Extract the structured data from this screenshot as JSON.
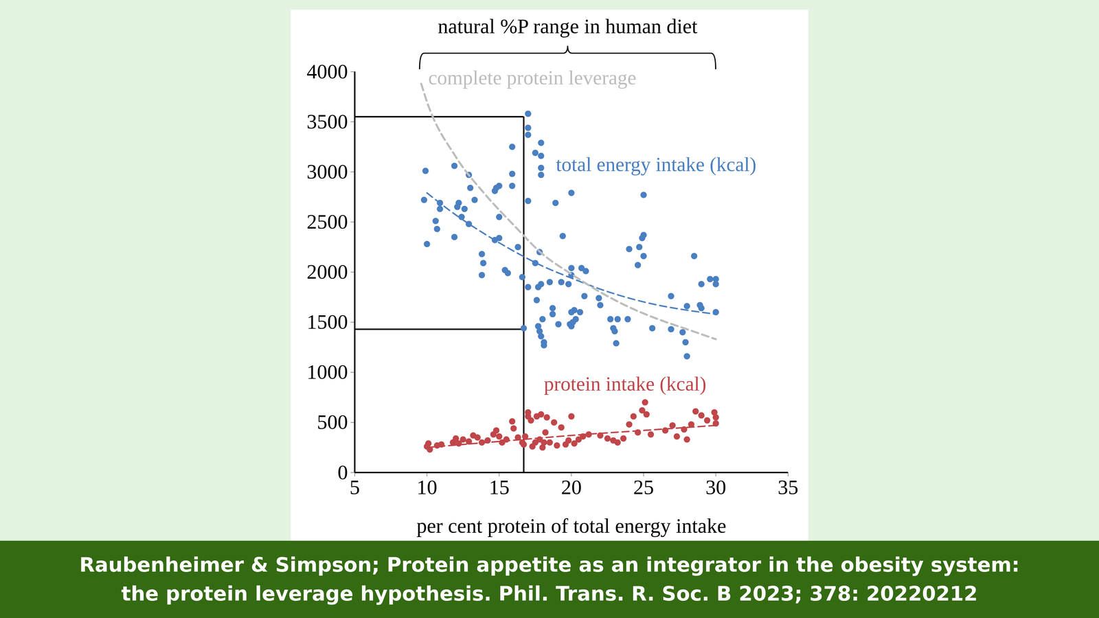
{
  "chart_data": {
    "type": "scatter",
    "x_label": "per cent protein of total energy intake",
    "xlim": [
      5,
      35
    ],
    "xticks": [
      5,
      10,
      15,
      20,
      25,
      30,
      35
    ],
    "ylim": [
      0,
      4000
    ],
    "yticks": [
      0,
      500,
      1000,
      1500,
      2000,
      2500,
      3000,
      3500,
      4000
    ],
    "bracket": {
      "label": "natural %P range in human diet",
      "range": [
        9.5,
        30
      ]
    },
    "reference_lines": {
      "x": 16.7,
      "y": [
        3550,
        1430
      ]
    },
    "caption": [
      "Raubenheimer & Simpson; Protein appetite as an integrator in the obesity system:",
      "the protein leverage hypothesis. Phil. Trans. R. Soc. B 2023; 378: 20220212"
    ],
    "series": [
      {
        "name": "total energy intake (kcal)",
        "type": "scatter",
        "marker": "circle",
        "color": "#4a7fc1",
        "x": [
          9.9,
          9.8,
          10.0,
          10.6,
          10.7,
          10.9,
          10.9,
          11.9,
          11.9,
          12.1,
          12.2,
          12.4,
          12.6,
          12.9,
          13.0,
          12.9,
          13.3,
          13.8,
          13.9,
          13.8,
          14.7,
          14.8,
          15.0,
          14.7,
          15.0,
          15.0,
          15.4,
          15.6,
          15.9,
          15.9,
          15.9,
          16.3,
          16.6,
          16.7,
          17.0,
          17.0,
          17.0,
          17.0,
          17.0,
          17.5,
          17.9,
          17.9,
          17.9,
          17.9,
          17.8,
          17.5,
          17.6,
          17.7,
          17.9,
          17.7,
          17.8,
          17.9,
          18.1,
          18.1,
          18.0,
          18.5,
          18.7,
          18.7,
          18.9,
          19.1,
          19.3,
          19.4,
          19.8,
          19.9,
          20.0,
          20.0,
          20.0,
          20.0,
          20.0,
          20.1,
          20.2,
          20.3,
          20.6,
          20.7,
          21.0,
          20.9,
          21.9,
          22.0,
          22.7,
          22.9,
          23.0,
          23.1,
          23.2,
          23.9,
          24.0,
          24.6,
          24.7,
          24.9,
          25.0,
          25.0,
          25.0,
          25.6,
          26.9,
          26.9,
          27.7,
          27.9,
          28.0,
          28.0,
          28.5,
          28.9,
          29.0,
          29.0,
          29.6,
          30.0,
          30.0,
          30.0
        ],
        "values": [
          3010,
          2720,
          2280,
          2510,
          2430,
          2690,
          2630,
          3060,
          2350,
          2650,
          2690,
          2550,
          2630,
          2970,
          2840,
          2480,
          2720,
          2180,
          2090,
          1970,
          2810,
          2840,
          2860,
          2320,
          2340,
          2550,
          2020,
          1990,
          3250,
          2980,
          2860,
          2250,
          1950,
          1440,
          3580,
          3440,
          3370,
          2710,
          1850,
          3190,
          3290,
          3160,
          3040,
          2970,
          2200,
          2090,
          1720,
          1850,
          1880,
          1460,
          1410,
          1360,
          1300,
          1270,
          1530,
          1900,
          1640,
          1580,
          2690,
          1480,
          1900,
          2360,
          1880,
          1480,
          2040,
          1970,
          2790,
          1600,
          1460,
          1500,
          1620,
          1530,
          1600,
          2040,
          2010,
          1760,
          1740,
          1670,
          1530,
          1440,
          1410,
          1290,
          1530,
          1530,
          2230,
          2070,
          2250,
          2340,
          2370,
          2160,
          2770,
          1440,
          1760,
          1430,
          1400,
          1300,
          1160,
          1660,
          2160,
          1670,
          1640,
          1880,
          1930,
          1880,
          1930,
          1600
        ],
        "trend": {
          "line_style": "dashed",
          "x": [
            10,
            12,
            14,
            16,
            18,
            20,
            22,
            24,
            26,
            28,
            30
          ],
          "values": [
            2790,
            2570,
            2380,
            2210,
            2060,
            1940,
            1830,
            1740,
            1670,
            1620,
            1580
          ]
        }
      },
      {
        "name": "protein intake (kcal)",
        "type": "scatter",
        "marker": "circle",
        "color": "#c0464a",
        "x": [
          10.0,
          10.1,
          10.2,
          10.7,
          11.0,
          11.8,
          12.0,
          12.2,
          12.5,
          12.9,
          13.2,
          13.5,
          13.8,
          14.2,
          14.6,
          14.8,
          15.0,
          15.2,
          15.5,
          15.9,
          16.0,
          16.3,
          16.6,
          16.7,
          16.8,
          17.0,
          17.0,
          17.2,
          17.3,
          17.5,
          17.6,
          17.8,
          17.9,
          18.0,
          18.1,
          18.2,
          18.3,
          18.5,
          18.8,
          19.0,
          19.3,
          19.6,
          19.8,
          20.0,
          20.2,
          20.5,
          20.8,
          21.2,
          22.0,
          22.5,
          22.9,
          23.2,
          23.6,
          24.0,
          24.3,
          24.6,
          24.9,
          25.1,
          25.2,
          25.5,
          26.5,
          27.0,
          27.3,
          27.8,
          28.0,
          28.3,
          28.6,
          29.0,
          29.4,
          29.9,
          30.0,
          30.0
        ],
        "values": [
          260,
          290,
          230,
          270,
          280,
          300,
          340,
          290,
          330,
          310,
          370,
          350,
          300,
          320,
          380,
          420,
          360,
          300,
          330,
          510,
          440,
          350,
          300,
          280,
          360,
          600,
          560,
          520,
          260,
          300,
          560,
          330,
          580,
          250,
          300,
          400,
          550,
          300,
          500,
          270,
          450,
          280,
          320,
          560,
          290,
          330,
          360,
          380,
          370,
          340,
          320,
          300,
          340,
          480,
          560,
          400,
          620,
          700,
          580,
          380,
          420,
          470,
          360,
          430,
          330,
          480,
          610,
          570,
          520,
          600,
          490,
          550
        ],
        "trend": {
          "line_style": "dashed",
          "x": [
            10,
            15,
            20,
            25,
            30
          ],
          "values": [
            250,
            310,
            370,
            420,
            470
          ]
        }
      },
      {
        "name": "complete protein leverage",
        "type": "line",
        "line_style": "dashed",
        "color": "#bdbdbd",
        "x": [
          9.6,
          10,
          12,
          14,
          16,
          18,
          20,
          22,
          24,
          26,
          28,
          30
        ],
        "values": [
          3880,
          3700,
          3150,
          2780,
          2470,
          2180,
          1980,
          1800,
          1650,
          1530,
          1430,
          1330
        ]
      }
    ]
  }
}
